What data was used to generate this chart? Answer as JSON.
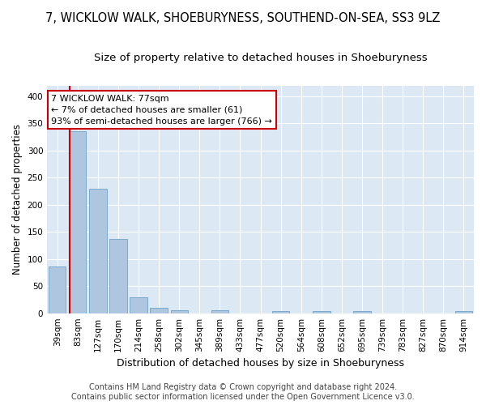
{
  "title": "7, WICKLOW WALK, SHOEBURYNESS, SOUTHEND-ON-SEA, SS3 9LZ",
  "subtitle": "Size of property relative to detached houses in Shoeburyness",
  "xlabel": "Distribution of detached houses by size in Shoeburyness",
  "ylabel": "Number of detached properties",
  "footer_line1": "Contains HM Land Registry data © Crown copyright and database right 2024.",
  "footer_line2": "Contains public sector information licensed under the Open Government Licence v3.0.",
  "categories": [
    "39sqm",
    "83sqm",
    "127sqm",
    "170sqm",
    "214sqm",
    "258sqm",
    "302sqm",
    "345sqm",
    "389sqm",
    "433sqm",
    "477sqm",
    "520sqm",
    "564sqm",
    "608sqm",
    "652sqm",
    "695sqm",
    "739sqm",
    "783sqm",
    "827sqm",
    "870sqm",
    "914sqm"
  ],
  "values": [
    86,
    335,
    229,
    137,
    29,
    10,
    5,
    0,
    5,
    0,
    0,
    4,
    0,
    4,
    0,
    4,
    0,
    0,
    0,
    0,
    4
  ],
  "bar_color": "#aec6e0",
  "bar_edge_color": "#7aaacb",
  "highlight_line_color": "#cc0000",
  "highlight_line_xindex": 1,
  "annotation_text_line1": "7 WICKLOW WALK: 77sqm",
  "annotation_text_line2": "← 7% of detached houses are smaller (61)",
  "annotation_text_line3": "93% of semi-detached houses are larger (766) →",
  "annotation_box_facecolor": "#ffffff",
  "annotation_box_edgecolor": "#cc0000",
  "ylim": [
    0,
    420
  ],
  "yticks": [
    0,
    50,
    100,
    150,
    200,
    250,
    300,
    350,
    400
  ],
  "fig_facecolor": "#ffffff",
  "plot_bg_color": "#dce9f5",
  "grid_color": "#ffffff",
  "title_fontsize": 10.5,
  "subtitle_fontsize": 9.5,
  "xlabel_fontsize": 9,
  "ylabel_fontsize": 8.5,
  "tick_fontsize": 7.5,
  "annotation_fontsize": 8,
  "footer_fontsize": 7
}
